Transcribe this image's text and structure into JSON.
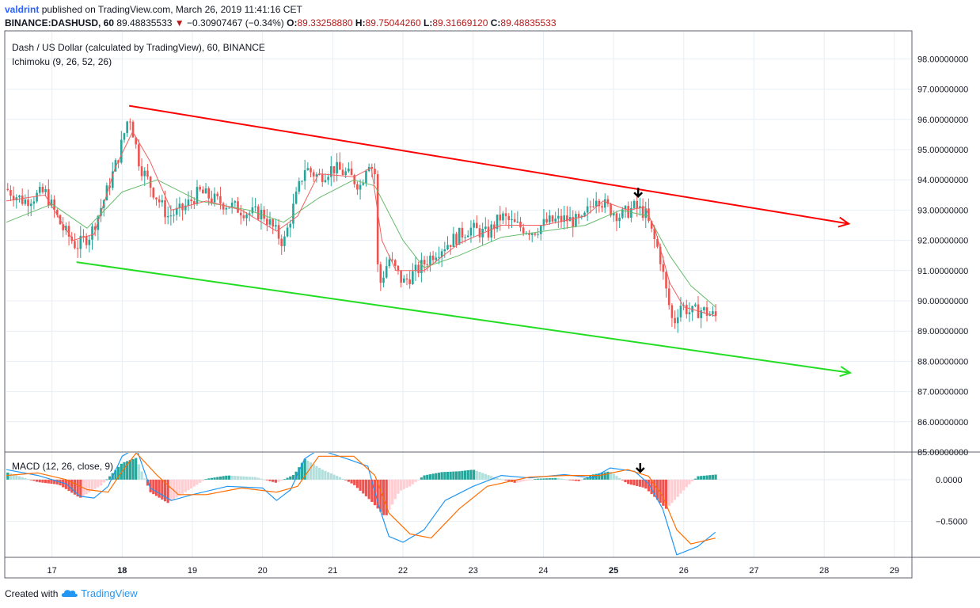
{
  "header": {
    "author": "valdrint",
    "published": "published on TradingView.com, March 26, 2019 11:41:16 CET",
    "symbol": "BINANCE:DASHUSD, 60",
    "price": "89.48835533",
    "change_arrow": "▼",
    "change": "−0.30907467 (−0.34%)",
    "o_label": "O:",
    "o": "89.33258880",
    "h_label": "H:",
    "h": "89.75044260",
    "l_label": "L:",
    "l": "89.31669120",
    "c_label": "C:",
    "c": "89.48835533"
  },
  "pane": {
    "title": "Dash / US Dollar (calculated by TradingView), 60, BINANCE",
    "indicator": "Ichimoku (9, 26, 52, 26)",
    "macd_label": "MACD (12, 26, close, 9)"
  },
  "footer": {
    "created": "Created with",
    "brand": "TradingView",
    "logo_icon": "tradingview-cloud-icon"
  },
  "colors": {
    "up": "#26a69a",
    "down": "#ef5350",
    "conversion": "#f06060",
    "base": "#66bb6a",
    "resistance": "#ff0000",
    "support": "#22dd22",
    "macd": "#2196f3",
    "signal": "#ff6d00",
    "hist_up_strong": "#26a69a",
    "hist_up_weak": "#b2dfdb",
    "hist_down_strong": "#ef5350",
    "hist_down_weak": "#ffcdd2",
    "grid": "#e8eef5"
  },
  "chart_data": [
    {
      "type": "candlestick",
      "x_ticks": [
        "17",
        "18",
        "19",
        "20",
        "21",
        "22",
        "23",
        "24",
        "25",
        "26",
        "27",
        "28",
        "29"
      ],
      "x_range": [
        16.35,
        29.25
      ],
      "y_range": [
        85,
        98.9
      ],
      "y_ticks": [
        "85.00000000",
        "86.00000000",
        "87.00000000",
        "88.00000000",
        "89.00000000",
        "90.00000000",
        "91.00000000",
        "92.00000000",
        "93.00000000",
        "94.00000000",
        "95.00000000",
        "96.00000000",
        "97.00000000",
        "98.00000000"
      ],
      "y_tick_values": [
        85,
        86,
        87,
        88,
        89,
        90,
        91,
        92,
        93,
        94,
        95,
        96,
        97,
        98
      ],
      "price_path": [
        [
          16.35,
          93.7
        ],
        [
          16.6,
          93.3
        ],
        [
          16.9,
          93.6
        ],
        [
          17.15,
          92.4
        ],
        [
          17.35,
          91.8
        ],
        [
          17.55,
          92.2
        ],
        [
          17.75,
          93.4
        ],
        [
          17.95,
          94.8
        ],
        [
          18.1,
          96.2
        ],
        [
          18.25,
          94.5
        ],
        [
          18.45,
          93.6
        ],
        [
          18.65,
          92.8
        ],
        [
          18.85,
          93.0
        ],
        [
          19.1,
          93.6
        ],
        [
          19.35,
          93.3
        ],
        [
          19.6,
          93.1
        ],
        [
          19.8,
          92.9
        ],
        [
          20.0,
          92.9
        ],
        [
          20.15,
          92.4
        ],
        [
          20.3,
          91.9
        ],
        [
          20.45,
          93.2
        ],
        [
          20.6,
          94.4
        ],
        [
          20.8,
          94.1
        ],
        [
          21.0,
          94.4
        ],
        [
          21.2,
          94.2
        ],
        [
          21.4,
          93.8
        ],
        [
          21.5,
          94.7
        ],
        [
          21.6,
          94.2
        ],
        [
          21.65,
          90.4
        ],
        [
          21.8,
          91.4
        ],
        [
          22.0,
          90.6
        ],
        [
          22.2,
          91.0
        ],
        [
          22.45,
          91.6
        ],
        [
          22.7,
          92.0
        ],
        [
          22.95,
          92.4
        ],
        [
          23.2,
          92.2
        ],
        [
          23.4,
          92.8
        ],
        [
          23.6,
          92.5
        ],
        [
          23.85,
          92.3
        ],
        [
          24.05,
          92.6
        ],
        [
          24.3,
          92.7
        ],
        [
          24.55,
          92.6
        ],
        [
          24.75,
          93.5
        ],
        [
          24.9,
          93.1
        ],
        [
          25.1,
          92.8
        ],
        [
          25.3,
          93.1
        ],
        [
          25.45,
          92.9
        ],
        [
          25.55,
          92.2
        ],
        [
          25.65,
          91.6
        ],
        [
          25.75,
          90.3
        ],
        [
          25.85,
          89.2
        ],
        [
          25.95,
          89.9
        ],
        [
          26.1,
          89.6
        ],
        [
          26.25,
          89.7
        ],
        [
          26.45,
          89.48
        ]
      ],
      "ichimoku": {
        "conversion_line": [
          [
            16.35,
            93.3
          ],
          [
            16.9,
            93.5
          ],
          [
            17.3,
            92.0
          ],
          [
            17.6,
            92.2
          ],
          [
            17.9,
            94.4
          ],
          [
            18.15,
            95.6
          ],
          [
            18.4,
            94.6
          ],
          [
            18.7,
            93.0
          ],
          [
            19.2,
            93.3
          ],
          [
            19.7,
            93.0
          ],
          [
            20.2,
            92.3
          ],
          [
            20.5,
            92.8
          ],
          [
            20.8,
            94.2
          ],
          [
            21.3,
            94.1
          ],
          [
            21.55,
            94.4
          ],
          [
            21.7,
            92.0
          ],
          [
            21.9,
            91.0
          ],
          [
            22.3,
            91.0
          ],
          [
            22.8,
            91.9
          ],
          [
            23.4,
            92.5
          ],
          [
            24.0,
            92.5
          ],
          [
            24.6,
            92.8
          ],
          [
            24.85,
            93.3
          ],
          [
            25.2,
            93.0
          ],
          [
            25.45,
            93.1
          ],
          [
            25.6,
            92.3
          ],
          [
            25.8,
            90.6
          ],
          [
            26.0,
            89.8
          ],
          [
            26.45,
            89.5
          ]
        ],
        "base_line": [
          [
            16.35,
            92.6
          ],
          [
            17.0,
            93.2
          ],
          [
            17.5,
            92.4
          ],
          [
            18.0,
            93.6
          ],
          [
            18.5,
            94.0
          ],
          [
            19.1,
            93.3
          ],
          [
            19.8,
            93.0
          ],
          [
            20.3,
            92.6
          ],
          [
            20.8,
            93.4
          ],
          [
            21.3,
            94.0
          ],
          [
            21.6,
            93.8
          ],
          [
            22.0,
            92.0
          ],
          [
            22.3,
            91.1
          ],
          [
            22.8,
            91.5
          ],
          [
            23.4,
            92.1
          ],
          [
            24.0,
            92.3
          ],
          [
            24.6,
            92.5
          ],
          [
            25.1,
            93.0
          ],
          [
            25.5,
            92.8
          ],
          [
            25.8,
            91.5
          ],
          [
            26.1,
            90.5
          ],
          [
            26.45,
            89.8
          ]
        ]
      },
      "trendlines": [
        {
          "name": "resistance",
          "from": [
            18.1,
            96.45
          ],
          "to": [
            28.35,
            92.55
          ],
          "arrow": true
        },
        {
          "name": "support",
          "from": [
            17.35,
            91.28
          ],
          "to": [
            28.37,
            87.62
          ],
          "arrow": true
        }
      ],
      "markers": [
        {
          "x": 25.35,
          "y": 93.45,
          "direction": "down"
        }
      ]
    },
    {
      "type": "macd",
      "y_range": [
        -0.93,
        0.33
      ],
      "y_ticks": [
        "0.0000",
        "−0.5000"
      ],
      "y_tick_values": [
        0,
        -0.5
      ],
      "macd_path": [
        [
          16.35,
          0.12
        ],
        [
          16.8,
          0.05
        ],
        [
          17.2,
          -0.05
        ],
        [
          17.4,
          -0.2
        ],
        [
          17.6,
          -0.22
        ],
        [
          17.8,
          -0.08
        ],
        [
          18.0,
          0.28
        ],
        [
          18.2,
          0.38
        ],
        [
          18.4,
          -0.1
        ],
        [
          18.7,
          -0.25
        ],
        [
          19.0,
          -0.18
        ],
        [
          19.5,
          -0.08
        ],
        [
          20.0,
          -0.1
        ],
        [
          20.2,
          -0.25
        ],
        [
          20.4,
          -0.12
        ],
        [
          20.6,
          0.25
        ],
        [
          20.8,
          0.36
        ],
        [
          21.2,
          0.25
        ],
        [
          21.5,
          0.16
        ],
        [
          21.65,
          -0.3
        ],
        [
          21.8,
          -0.68
        ],
        [
          22.0,
          -0.75
        ],
        [
          22.3,
          -0.6
        ],
        [
          22.6,
          -0.25
        ],
        [
          23.0,
          -0.08
        ],
        [
          23.4,
          0.05
        ],
        [
          23.8,
          0.02
        ],
        [
          24.3,
          0.06
        ],
        [
          24.7,
          0.02
        ],
        [
          24.95,
          0.14
        ],
        [
          25.3,
          0.1
        ],
        [
          25.5,
          -0.05
        ],
        [
          25.7,
          -0.35
        ],
        [
          25.9,
          -0.9
        ],
        [
          26.2,
          -0.8
        ],
        [
          26.45,
          -0.63
        ]
      ],
      "signal_path": [
        [
          16.35,
          0.05
        ],
        [
          16.8,
          0.08
        ],
        [
          17.2,
          0.0
        ],
        [
          17.5,
          -0.12
        ],
        [
          17.8,
          -0.15
        ],
        [
          18.0,
          0.1
        ],
        [
          18.2,
          0.32
        ],
        [
          18.5,
          0.05
        ],
        [
          18.8,
          -0.18
        ],
        [
          19.2,
          -0.18
        ],
        [
          19.7,
          -0.1
        ],
        [
          20.2,
          -0.15
        ],
        [
          20.5,
          -0.08
        ],
        [
          20.8,
          0.28
        ],
        [
          21.3,
          0.28
        ],
        [
          21.6,
          0.05
        ],
        [
          21.8,
          -0.4
        ],
        [
          22.1,
          -0.65
        ],
        [
          22.4,
          -0.7
        ],
        [
          22.8,
          -0.35
        ],
        [
          23.2,
          -0.08
        ],
        [
          23.8,
          0.03
        ],
        [
          24.3,
          0.05
        ],
        [
          24.8,
          0.05
        ],
        [
          25.2,
          0.12
        ],
        [
          25.5,
          0.04
        ],
        [
          25.7,
          -0.2
        ],
        [
          25.9,
          -0.6
        ],
        [
          26.1,
          -0.77
        ],
        [
          26.45,
          -0.7
        ]
      ],
      "histogram_points": [
        [
          16.35,
          0.09
        ],
        [
          16.8,
          -0.03
        ],
        [
          17.1,
          -0.06
        ],
        [
          17.4,
          -0.22
        ],
        [
          17.7,
          -0.07
        ],
        [
          18.0,
          0.2
        ],
        [
          18.2,
          0.26
        ],
        [
          18.4,
          -0.15
        ],
        [
          18.65,
          -0.28
        ],
        [
          18.9,
          -0.15
        ],
        [
          19.2,
          0.01
        ],
        [
          19.5,
          0.05
        ],
        [
          19.9,
          0.03
        ],
        [
          20.2,
          -0.04
        ],
        [
          20.45,
          0.06
        ],
        [
          20.6,
          0.25
        ],
        [
          20.85,
          0.12
        ],
        [
          21.1,
          0.03
        ],
        [
          21.3,
          -0.06
        ],
        [
          21.55,
          -0.26
        ],
        [
          21.75,
          -0.45
        ],
        [
          21.95,
          -0.14
        ],
        [
          22.1,
          -0.08
        ],
        [
          22.3,
          0.05
        ],
        [
          22.55,
          0.09
        ],
        [
          22.8,
          0.1
        ],
        [
          23.0,
          0.12
        ],
        [
          23.3,
          0.03
        ],
        [
          23.6,
          -0.04
        ],
        [
          23.9,
          0.01
        ],
        [
          24.2,
          0.02
        ],
        [
          24.5,
          -0.02
        ],
        [
          24.7,
          0.06
        ],
        [
          24.95,
          0.1
        ],
        [
          25.2,
          -0.05
        ],
        [
          25.45,
          -0.1
        ],
        [
          25.6,
          -0.22
        ],
        [
          25.75,
          -0.35
        ],
        [
          25.9,
          -0.22
        ],
        [
          26.05,
          -0.08
        ],
        [
          26.2,
          0.04
        ],
        [
          26.45,
          0.06
        ]
      ],
      "markers": [
        {
          "x": 25.38,
          "direction": "down"
        }
      ]
    }
  ]
}
